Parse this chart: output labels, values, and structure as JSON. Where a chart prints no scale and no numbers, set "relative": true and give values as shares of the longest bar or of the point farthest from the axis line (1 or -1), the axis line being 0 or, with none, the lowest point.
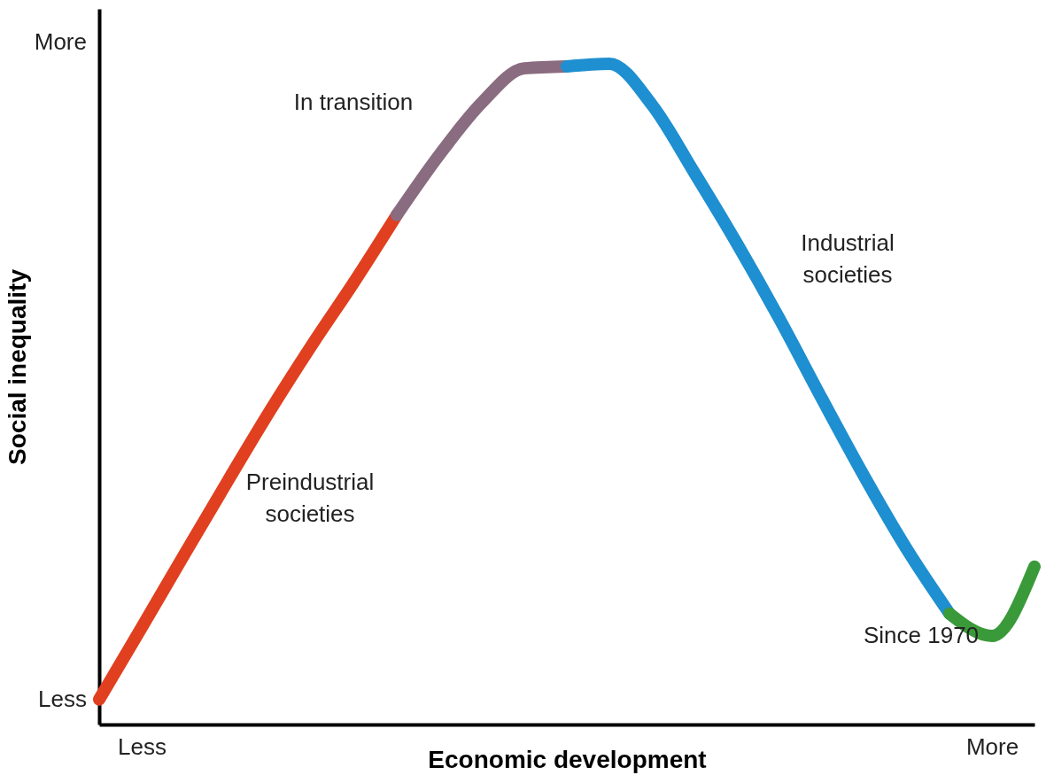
{
  "chart_data": {
    "type": "line",
    "relative": true,
    "xlabel": "Economic development",
    "ylabel": "Social inequality",
    "annotations": [
      "Less",
      "More"
    ],
    "grid": false,
    "categories": [
      null,
      "Less",
      null,
      null,
      null,
      null,
      null,
      null,
      null,
      null,
      null,
      null,
      null,
      null,
      null,
      null,
      null,
      null,
      null,
      null,
      null,
      "More",
      null
    ],
    "series": [
      {
        "name": "Preindustrial societies",
        "color": "#e0401f",
        "values": [
          0.038,
          0.147,
          0.257,
          0.366,
          0.473,
          0.574,
          0.67,
          0.771,
          null,
          null,
          null,
          null,
          null,
          null,
          null,
          null,
          null,
          null,
          null,
          null,
          null,
          null,
          null
        ]
      },
      {
        "name": "In transition",
        "color": "#8a6c80",
        "values": [
          null,
          null,
          null,
          null,
          null,
          null,
          null,
          0.771,
          0.862,
          0.941,
          0.993,
          0.996,
          null,
          null,
          null,
          null,
          null,
          null,
          null,
          null,
          null,
          null,
          null
        ]
      },
      {
        "name": "Industrial societies",
        "color": "#1e8fd0",
        "values": [
          null,
          null,
          null,
          null,
          null,
          null,
          null,
          null,
          null,
          null,
          null,
          0.996,
          1,
          0.938,
          0.835,
          0.728,
          0.614,
          0.493,
          0.375,
          0.265,
          0.168,
          null,
          null
        ]
      },
      {
        "name": "Since 1970",
        "color": "#3a9a3a",
        "values": [
          null,
          null,
          null,
          null,
          null,
          null,
          null,
          null,
          null,
          null,
          null,
          null,
          null,
          null,
          null,
          null,
          null,
          null,
          null,
          null,
          0.168,
          0.134,
          0.239
        ]
      }
    ]
  }
}
